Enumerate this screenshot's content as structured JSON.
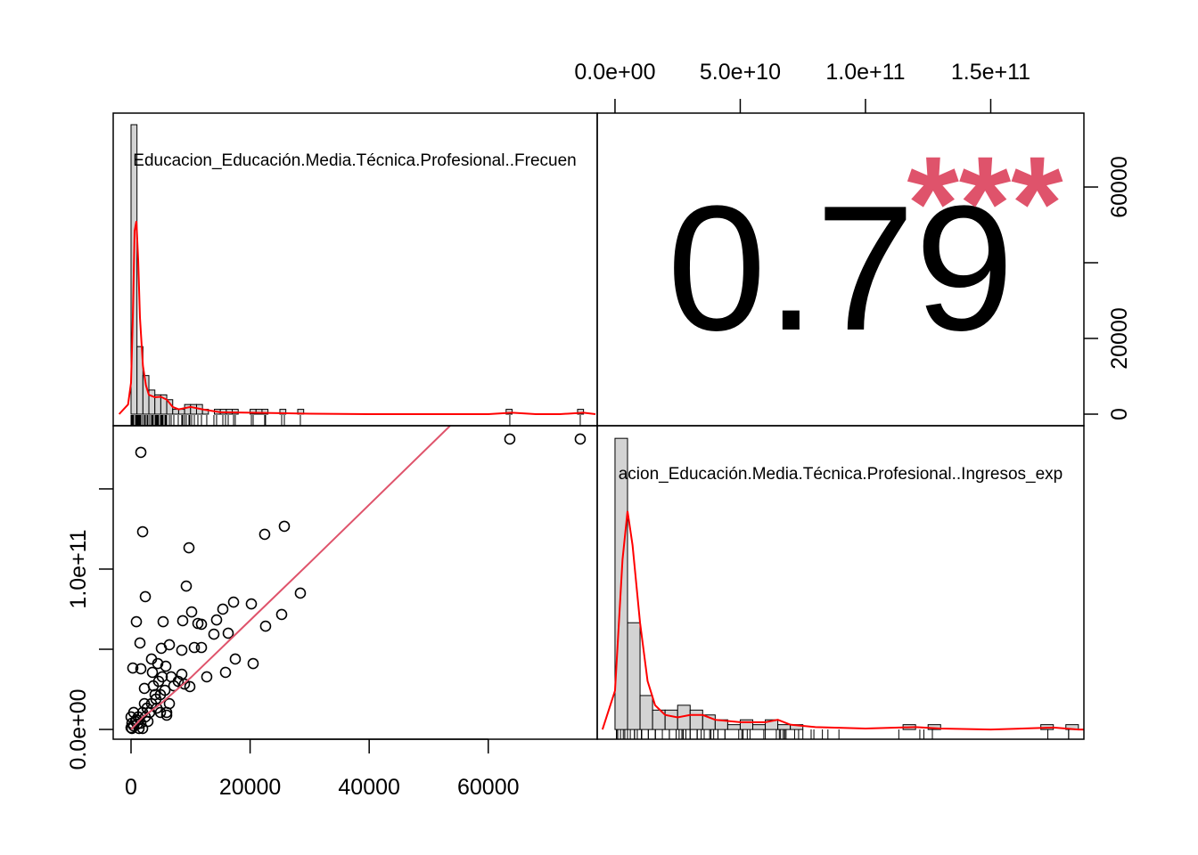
{
  "chart_data": {
    "type": "pairs",
    "variables": [
      "Educacion_Educación.Media.Técnica.Profesional..Frecuen",
      "acion_Educación.Media.Técnica.Profesional..Ingresos_exp"
    ],
    "correlation": 0.79,
    "significance": "***",
    "significance_color": "#DF536B",
    "point_color": "#000000",
    "trend_color": "#DF536B",
    "density_color": "#FF0000",
    "bar_color": "#D3D3D3",
    "xlim": [
      -2994,
      78300
    ],
    "xticks": [
      0,
      20000,
      40000,
      60000
    ],
    "ylim": [
      -6100000000.0,
      189400000000.0
    ],
    "yticks": [
      {
        "value": 0,
        "label": "0.0e+00"
      },
      {
        "value": 100000000000.0,
        "label": "1.0e+11"
      }
    ],
    "ytick_marks": [
      0,
      50000000000.0,
      100000000000.0,
      150000000000.0
    ],
    "x2lim": [
      -7100000000.0,
      187200000000.0
    ],
    "x2ticks": [
      {
        "value": 0,
        "label": "0.0e+00"
      },
      {
        "value": 50000000000.0,
        "label": "5.0e+10"
      },
      {
        "value": 100000000000.0,
        "label": "1.0e+11"
      },
      {
        "value": 150000000000.0,
        "label": "1.5e+11"
      }
    ],
    "y2lim": [
      -3059,
      79529
    ],
    "y2ticks": [
      0,
      20000,
      60000
    ],
    "y2tick_marks": [
      0,
      20000,
      40000,
      60000
    ],
    "scatter": {
      "x": [
        63620,
        75450,
        1650,
        1950,
        9730,
        22450,
        25750,
        2400,
        9280,
        28440,
        17220,
        20210,
        25300,
        900,
        5390,
        8680,
        10180,
        15420,
        14370,
        11230,
        11830,
        13920,
        16320,
        22600,
        1500,
        6440,
        5090,
        8530,
        10630,
        11830,
        17510,
        20510,
        15870,
        12720,
        300,
        1650,
        3440,
        4490,
        5840,
        8530,
        8980,
        9880,
        2250,
        4940,
        5990,
        5990,
        450,
        750,
        150,
        1200,
        1950,
        0,
        900,
        1650,
        2690,
        3440,
        4190,
        3140,
        3740,
        4640,
        5240,
        5690,
        2250,
        450,
        0,
        1350,
        2840,
        4340,
        6440,
        7190,
        6740,
        7930,
        3590,
        4040,
        4940,
        150,
        1950,
        2400,
        1050
      ],
      "y": [
        181100000000.0,
        181100000000.0,
        172800000000.0,
        123300000000.0,
        113300000000.0,
        121700000000.0,
        126700000000.0,
        82800000000.0,
        89400000000.0,
        85000000000.0,
        79400000000.0,
        78300000000.0,
        71700000000.0,
        67200000000.0,
        67200000000.0,
        67800000000.0,
        73300000000.0,
        75000000000.0,
        68300000000.0,
        66100000000.0,
        65600000000.0,
        59400000000.0,
        60000000000.0,
        64400000000.0,
        53900000000.0,
        52800000000.0,
        50600000000.0,
        49400000000.0,
        51100000000.0,
        51100000000.0,
        43900000000.0,
        41100000000.0,
        35600000000.0,
        32800000000.0,
        38300000000.0,
        37800000000.0,
        43900000000.0,
        41100000000.0,
        39400000000.0,
        34400000000.0,
        28300000000.0,
        26700000000.0,
        25600000000.0,
        21700000000.0,
        10600000000.0,
        8900000000.0,
        2200000000.0,
        5000000000.0,
        3900000000.0,
        7800000000.0,
        10600000000.0,
        1100000000.0,
        6100000000.0,
        3900000000.0,
        13300000000.0,
        16100000000.0,
        18900000000.0,
        10600000000.0,
        27200000000.0,
        30000000000.0,
        32800000000.0,
        24400000000.0,
        16100000000.0,
        10600000000.0,
        7800000000.0,
        600000000.0,
        5000000000.0,
        13300000000.0,
        16100000000.0,
        27200000000.0,
        32800000000.0,
        30000000000.0,
        35600000000.0,
        21700000000.0,
        10600000000.0,
        600000000.0,
        600000000.0,
        7800000000.0,
        3300000000.0
      ]
    },
    "trend": {
      "x": [
        0,
        2000,
        5000,
        10000,
        30000,
        53600
      ],
      "y": [
        0,
        7800000000.0,
        16100000000.0,
        32200000000.0,
        103900000000.0,
        189400000000.0
      ]
    },
    "hist1": {
      "ylim": [
        -2.4,
        62.4
      ],
      "bins": [
        0,
        1000,
        2000,
        3000,
        4000,
        5000,
        6000,
        7000,
        8000,
        9000,
        10000,
        11000,
        12000,
        13000,
        14000,
        15000,
        16000,
        17000,
        18000,
        19000,
        20000,
        21000,
        22000,
        23000,
        24000,
        25000,
        26000,
        27000,
        28000,
        29000,
        30000,
        31000,
        32000,
        33000,
        34000,
        35000,
        36000,
        37000,
        38000,
        39000,
        40000,
        41000,
        42000,
        43000,
        44000,
        45000,
        46000,
        47000,
        48000,
        49000,
        50000,
        51000,
        52000,
        53000,
        54000,
        55000,
        56000,
        57000,
        58000,
        59000,
        60000,
        61000,
        62000,
        63000,
        64000,
        65000,
        66000,
        67000,
        68000,
        69000,
        70000,
        71000,
        72000,
        73000,
        74000,
        75000,
        76000,
        77000,
        78000
      ],
      "counts": [
        60,
        14,
        8,
        5,
        4,
        4,
        3,
        1,
        1,
        2,
        2,
        2,
        1,
        0,
        1,
        1,
        1,
        1,
        0,
        0,
        1,
        1,
        1,
        0,
        0,
        1,
        0,
        0,
        1,
        0,
        0,
        0,
        0,
        0,
        0,
        0,
        0,
        0,
        0,
        0,
        0,
        0,
        0,
        0,
        0,
        0,
        0,
        0,
        0,
        0,
        0,
        0,
        0,
        0,
        0,
        0,
        0,
        0,
        0,
        0,
        0,
        0,
        0,
        1,
        0,
        0,
        0,
        0,
        0,
        0,
        0,
        0,
        0,
        0,
        0,
        1,
        0,
        0
      ],
      "density_x": [
        -2000,
        -500,
        0,
        300,
        600,
        900,
        1200,
        1500,
        2000,
        2500,
        3000,
        4000,
        5000,
        6000,
        7000,
        8000,
        10000,
        12000,
        15000,
        20000,
        25000,
        30000,
        40000,
        60000,
        64000,
        68000,
        72000,
        76000,
        78000
      ],
      "density_y": [
        0,
        2,
        6.5,
        20,
        38,
        40,
        32,
        20,
        10,
        6,
        4,
        3.5,
        3.6,
        3,
        1.5,
        1,
        1.5,
        1,
        0.4,
        0.3,
        0.2,
        0.1,
        0,
        0,
        0.3,
        0,
        0,
        0.3,
        0
      ]
    },
    "hist2": {
      "ylim": [
        -2,
        62.6
      ],
      "bins": [
        0,
        5000000000.0,
        10000000000.0,
        15000000000.0,
        20000000000.0,
        25000000000.0,
        30000000000.0,
        35000000000.0,
        40000000000.0,
        45000000000.0,
        50000000000.0,
        55000000000.0,
        60000000000.0,
        65000000000.0,
        70000000000.0,
        75000000000.0,
        80000000000.0,
        85000000000.0,
        90000000000.0,
        95000000000.0,
        100000000000.0,
        105000000000.0,
        110000000000.0,
        115000000000.0,
        120000000000.0,
        125000000000.0,
        130000000000.0,
        135000000000.0,
        140000000000.0,
        145000000000.0,
        150000000000.0,
        155000000000.0,
        160000000000.0,
        165000000000.0,
        170000000000.0,
        175000000000.0,
        180000000000.0,
        185000000000.0,
        190000000000.0
      ],
      "counts": [
        60,
        22,
        7,
        4,
        4,
        5,
        4,
        3,
        2,
        1,
        2,
        1,
        2,
        1,
        1,
        0,
        0,
        0,
        0,
        0,
        0,
        0,
        0,
        1,
        0,
        1,
        0,
        0,
        0,
        0,
        0,
        0,
        0,
        0,
        1,
        0,
        1,
        0
      ],
      "density_x": [
        -5000000000.0,
        0,
        3000000000.0,
        5000000000.0,
        7000000000.0,
        10000000000.0,
        13000000000.0,
        16000000000.0,
        20000000000.0,
        25000000000.0,
        30000000000.0,
        35000000000.0,
        40000000000.0,
        50000000000.0,
        60000000000.0,
        65000000000.0,
        70000000000.0,
        80000000000.0,
        100000000000.0,
        120000000000.0,
        130000000000.0,
        150000000000.0,
        175000000000.0,
        185000000000.0,
        190000000000.0
      ],
      "density_y": [
        0,
        8,
        35,
        45,
        38,
        22,
        10,
        5,
        3,
        2.5,
        3,
        3,
        2,
        1.5,
        1.5,
        2,
        1,
        0.5,
        0.2,
        0.5,
        0.2,
        0,
        0.4,
        0,
        0
      ]
    }
  }
}
